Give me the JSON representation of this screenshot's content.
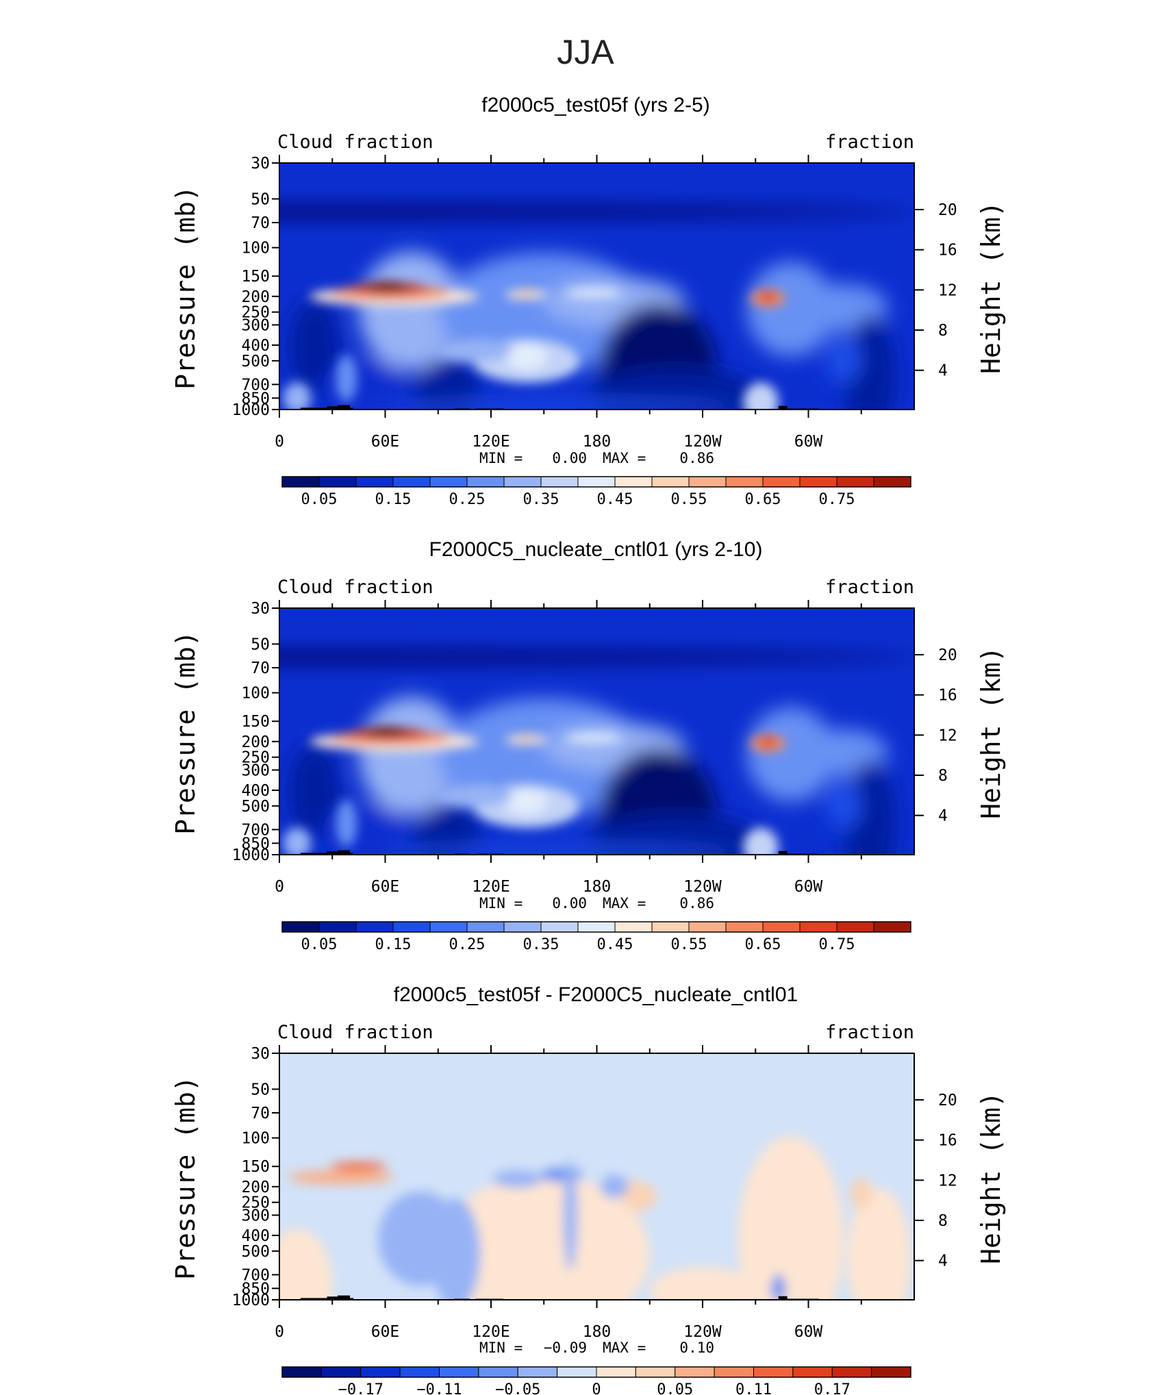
{
  "page_title": "JJA",
  "colors": {
    "positive": [
      "#fde9d8",
      "#fbd3b5",
      "#f8b08a",
      "#f58a61",
      "#f0643d",
      "#e2421f",
      "#c52810",
      "#9d1706",
      "#6e0803"
    ],
    "cloud_scale": [
      "#000e6b",
      "#001a9e",
      "#0b2fcf",
      "#1e4ee8",
      "#3b6ef2",
      "#6891f4",
      "#97b3f5",
      "#c2d3f7",
      "#e2ecfb",
      "#fde9d8",
      "#fbd3b5",
      "#f8b08a",
      "#f58a61",
      "#f0643d",
      "#e2421f",
      "#c52810",
      "#9d1706",
      "#6e0803"
    ],
    "diff_scale": [
      "#000e6b",
      "#001a9e",
      "#0b2fcf",
      "#1e4ee8",
      "#3b6ef2",
      "#6891f4",
      "#97b3f5",
      "#d2e2f8",
      "#fde5d2",
      "#fbd3b5",
      "#f8b08a",
      "#f58a61",
      "#f0643d",
      "#e2421f",
      "#c52810",
      "#9d1706",
      "#6e0803"
    ],
    "topography": "#000000"
  },
  "panels": [
    {
      "title": "f2000c5_test05f (yrs 2-5)",
      "left_label": "Cloud fraction",
      "right_label": "fraction",
      "stats": {
        "min_label": "MIN =",
        "min_value": "0.00",
        "max_label": "MAX =",
        "max_value": "0.86"
      },
      "colorbar_labels": [
        "0.05",
        "0.15",
        "0.25",
        "0.35",
        "0.45",
        "0.55",
        "0.65",
        "0.75"
      ]
    },
    {
      "title": "F2000C5_nucleate_cntl01 (yrs 2-10)",
      "left_label": "Cloud fraction",
      "right_label": "fraction",
      "stats": {
        "min_label": "MIN =",
        "min_value": "0.00",
        "max_label": "MAX =",
        "max_value": "0.86"
      },
      "colorbar_labels": [
        "0.05",
        "0.15",
        "0.25",
        "0.35",
        "0.45",
        "0.55",
        "0.65",
        "0.75"
      ]
    },
    {
      "title": "f2000c5_test05f - F2000C5_nucleate_cntl01",
      "left_label": "Cloud fraction",
      "right_label": "fraction",
      "stats": {
        "min_label": "MIN =",
        "min_value": "−0.09",
        "max_label": "MAX =",
        "max_value": "0.10"
      },
      "colorbar_labels": [
        "−0.17",
        "−0.11",
        "−0.05",
        "0",
        "0.05",
        "0.11",
        "0.17"
      ]
    }
  ],
  "chart_data": [
    {
      "type": "heatmap",
      "title": "f2000c5_test05f (yrs 2-5)",
      "field": "Cloud fraction",
      "units": "fraction",
      "xlabel": "",
      "ylabel": "Pressure (mb)",
      "y2label": "Height (km)",
      "x_ticks": [
        "0",
        "60E",
        "120E",
        "180",
        "120W",
        "60W"
      ],
      "x_tick_values": [
        0,
        60,
        120,
        180,
        240,
        300
      ],
      "xlim": [
        0,
        360
      ],
      "y_ticks": [
        "30",
        "50",
        "70",
        "100",
        "150",
        "200",
        "250",
        "300",
        "400",
        "500",
        "700",
        "850",
        "1000"
      ],
      "y_tick_values": [
        30,
        50,
        70,
        100,
        150,
        200,
        250,
        300,
        400,
        500,
        700,
        850,
        1000
      ],
      "ylim": [
        1000,
        30
      ],
      "y_scale": "log",
      "y2_ticks": [
        "20",
        "16",
        "12",
        "8",
        "4"
      ],
      "y2_tick_values": [
        20,
        16,
        12,
        8,
        4
      ],
      "levels": [
        0.05,
        0.1,
        0.15,
        0.2,
        0.25,
        0.3,
        0.35,
        0.4,
        0.45,
        0.5,
        0.55,
        0.6,
        0.65,
        0.7,
        0.75,
        0.8
      ],
      "min": 0.0,
      "max": 0.86,
      "features": [
        {
          "lon": 65,
          "p": 170,
          "value": 0.86
        },
        {
          "lon": 140,
          "p": 190,
          "value": 0.45
        },
        {
          "lon": 277,
          "p": 200,
          "value": 0.65
        },
        {
          "lon": 145,
          "p": 500,
          "value": 0.33
        },
        {
          "lon": 210,
          "p": 550,
          "value": 0.03
        },
        {
          "lon": 10,
          "p": 840,
          "value": 0.3
        }
      ]
    },
    {
      "type": "heatmap",
      "title": "F2000C5_nucleate_cntl01 (yrs 2-10)",
      "field": "Cloud fraction",
      "units": "fraction",
      "xlabel": "",
      "ylabel": "Pressure (mb)",
      "y2label": "Height (km)",
      "x_ticks": [
        "0",
        "60E",
        "120E",
        "180",
        "120W",
        "60W"
      ],
      "x_tick_values": [
        0,
        60,
        120,
        180,
        240,
        300
      ],
      "xlim": [
        0,
        360
      ],
      "y_ticks": [
        "30",
        "50",
        "70",
        "100",
        "150",
        "200",
        "250",
        "300",
        "400",
        "500",
        "700",
        "850",
        "1000"
      ],
      "y_tick_values": [
        30,
        50,
        70,
        100,
        150,
        200,
        250,
        300,
        400,
        500,
        700,
        850,
        1000
      ],
      "ylim": [
        1000,
        30
      ],
      "y_scale": "log",
      "y2_ticks": [
        "20",
        "16",
        "12",
        "8",
        "4"
      ],
      "y2_tick_values": [
        20,
        16,
        12,
        8,
        4
      ],
      "levels": [
        0.05,
        0.1,
        0.15,
        0.2,
        0.25,
        0.3,
        0.35,
        0.4,
        0.45,
        0.5,
        0.55,
        0.6,
        0.65,
        0.7,
        0.75,
        0.8
      ],
      "min": 0.0,
      "max": 0.86,
      "features": [
        {
          "lon": 65,
          "p": 170,
          "value": 0.86
        },
        {
          "lon": 140,
          "p": 190,
          "value": 0.45
        },
        {
          "lon": 277,
          "p": 200,
          "value": 0.65
        },
        {
          "lon": 145,
          "p": 470,
          "value": 0.33
        },
        {
          "lon": 210,
          "p": 550,
          "value": 0.03
        },
        {
          "lon": 10,
          "p": 840,
          "value": 0.3
        }
      ]
    },
    {
      "type": "heatmap",
      "title": "f2000c5_test05f - F2000C5_nucleate_cntl01",
      "field": "Cloud fraction",
      "units": "fraction",
      "xlabel": "",
      "ylabel": "Pressure (mb)",
      "y2label": "Height (km)",
      "x_ticks": [
        "0",
        "60E",
        "120E",
        "180",
        "120W",
        "60W"
      ],
      "x_tick_values": [
        0,
        60,
        120,
        180,
        240,
        300
      ],
      "xlim": [
        0,
        360
      ],
      "y_ticks": [
        "30",
        "50",
        "70",
        "100",
        "150",
        "200",
        "250",
        "300",
        "400",
        "500",
        "700",
        "850",
        "1000"
      ],
      "y_tick_values": [
        30,
        50,
        70,
        100,
        150,
        200,
        250,
        300,
        400,
        500,
        700,
        850,
        1000
      ],
      "ylim": [
        1000,
        30
      ],
      "y_scale": "log",
      "y2_ticks": [
        "20",
        "16",
        "12",
        "8",
        "4"
      ],
      "y2_tick_values": [
        20,
        16,
        12,
        8,
        4
      ],
      "levels": [
        -0.2,
        -0.17,
        -0.14,
        -0.11,
        -0.08,
        -0.05,
        -0.02,
        0,
        0.02,
        0.05,
        0.08,
        0.11,
        0.14,
        0.17,
        0.2
      ],
      "min": -0.09,
      "max": 0.1,
      "features": [
        {
          "lon": 45,
          "p": 150,
          "value": 0.08
        },
        {
          "lon": 160,
          "p": 160,
          "value": -0.06
        },
        {
          "lon": 200,
          "p": 220,
          "value": 0.04
        },
        {
          "lon": 80,
          "p": 450,
          "value": -0.04
        }
      ]
    }
  ]
}
